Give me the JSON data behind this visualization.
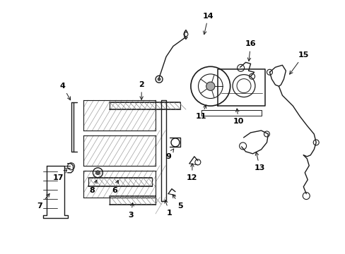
{
  "bg_color": "#ffffff",
  "line_color": "#1a1a1a",
  "label_color": "#000000",
  "figsize": [
    4.89,
    3.6
  ],
  "dpi": 100,
  "lw": 1.0,
  "label_fs": 8.0
}
